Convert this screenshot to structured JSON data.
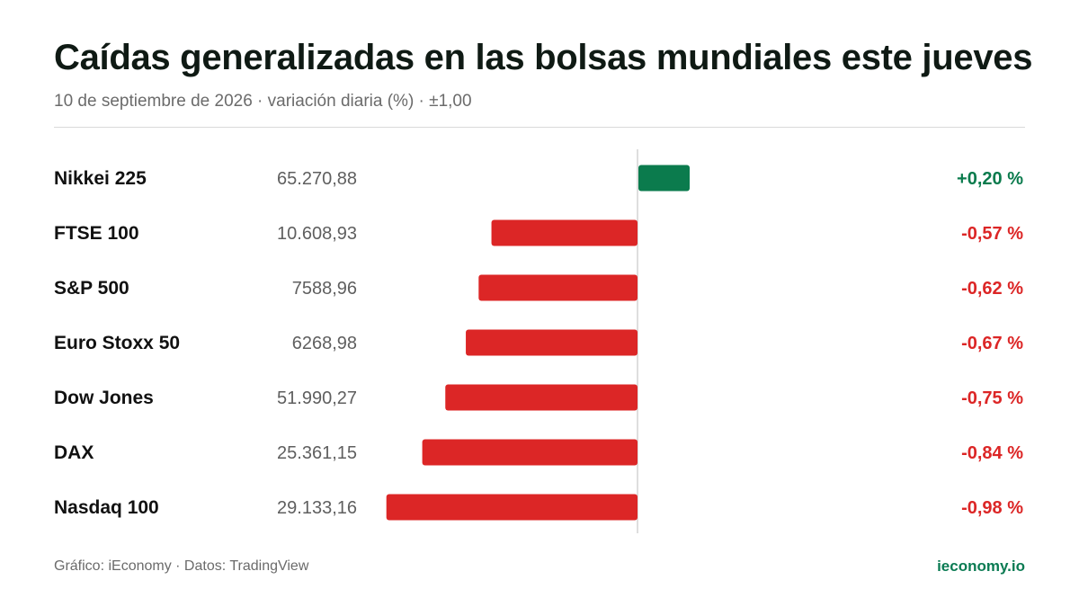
{
  "header": {
    "title": "Caídas generalizadas en las bolsas mundiales este jueves",
    "subtitle": "10 de septiembre de 2026 · variación diaria (%) · ±1,00"
  },
  "colors": {
    "positive": "#0b7b4d",
    "negative": "#dc2626",
    "axis": "#d4d4d4",
    "label": "#111111",
    "value": "#5f5f5f"
  },
  "chart_data": {
    "type": "bar",
    "orientation": "horizontal",
    "xlim": [
      -1.0,
      1.0
    ],
    "grid": false,
    "categories": [
      "Nikkei 225",
      "FTSE 100",
      "S&P 500",
      "Euro Stoxx 50",
      "Dow Jones",
      "DAX",
      "Nasdaq 100"
    ],
    "index_levels": [
      "65.270,88",
      "10.608,93",
      "7588,96",
      "6268,98",
      "51.990,27",
      "25.361,15",
      "29.133,16"
    ],
    "values": [
      0.2,
      -0.57,
      -0.62,
      -0.67,
      -0.75,
      -0.84,
      -0.98
    ],
    "value_labels": [
      "+0,20 %",
      "-0,57 %",
      "-0,62 %",
      "-0,67 %",
      "-0,75 %",
      "-0,84 %",
      "-0,98 %"
    ]
  },
  "footer": {
    "source": "Gráfico: iEconomy · Datos: TradingView",
    "brand": "ieconomy.io"
  }
}
